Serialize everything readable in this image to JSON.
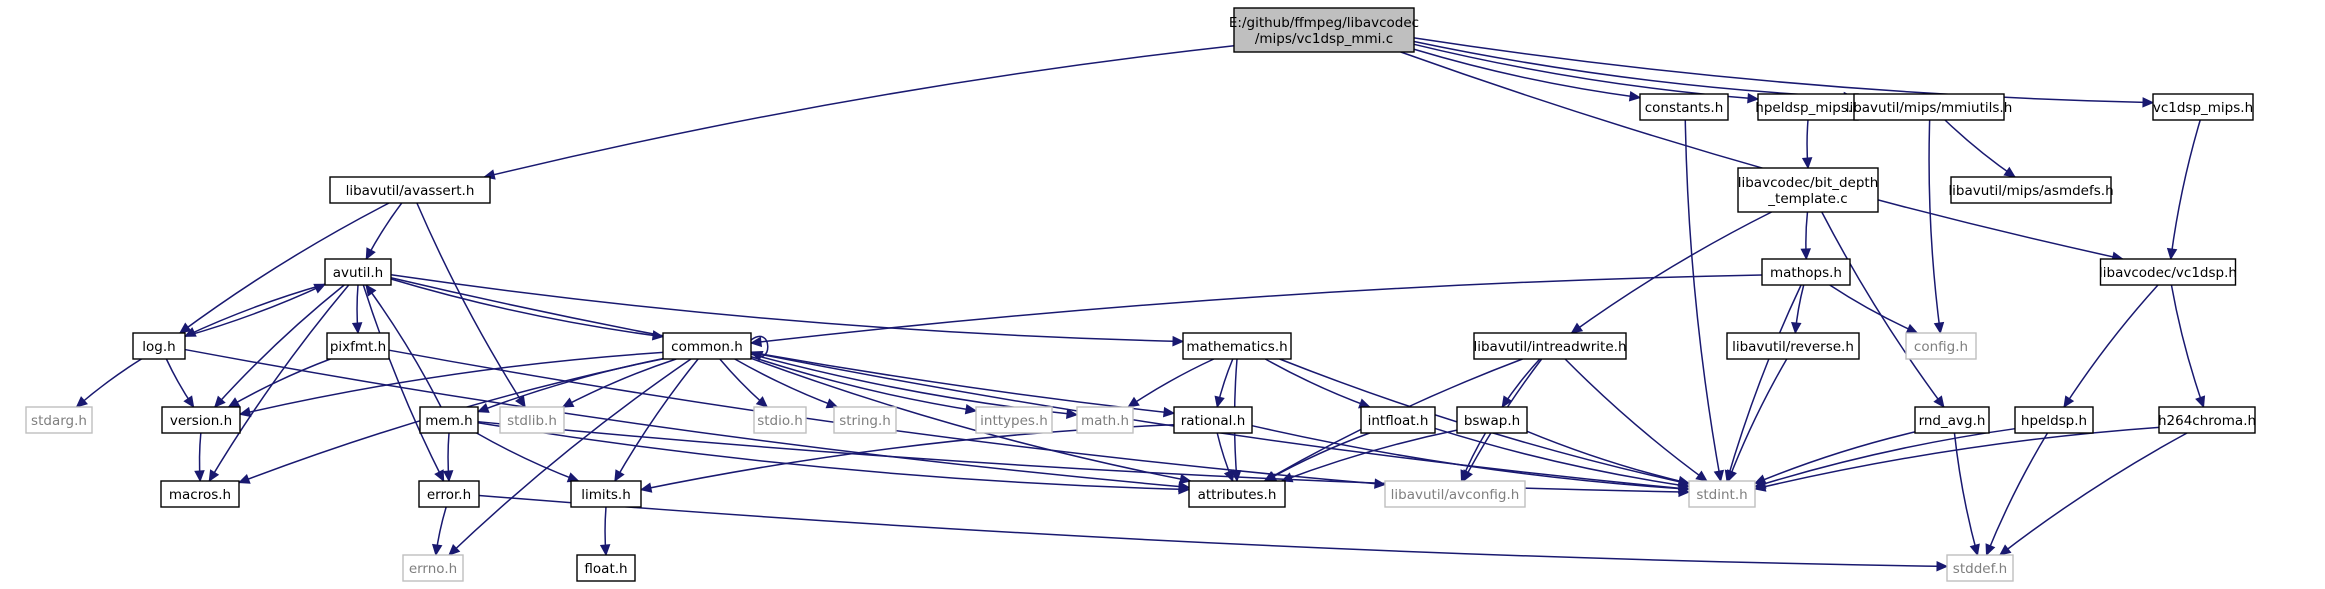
{
  "theme": {
    "node_fill": "#ffffff",
    "root_fill": "#bfbfbf",
    "border": "#000000",
    "external_border": "#bfbfbf",
    "external_text": "#7f7f7f",
    "edge": "#191970"
  },
  "nodes": [
    {
      "id": "root",
      "label": "E:/github/ffmpeg/libavcodec\n/mips/vc1dsp_mmi.c",
      "kind": "root"
    },
    {
      "id": "constants",
      "label": "constants.h",
      "kind": "local"
    },
    {
      "id": "hpeldsp_mips",
      "label": "hpeldsp_mips.h",
      "kind": "local"
    },
    {
      "id": "mmiutils",
      "label": "libavutil/mips/mmiutils.h",
      "kind": "local"
    },
    {
      "id": "vc1dsp_mips",
      "label": "vc1dsp_mips.h",
      "kind": "local"
    },
    {
      "id": "avassert",
      "label": "libavutil/avassert.h",
      "kind": "local"
    },
    {
      "id": "bitdepth",
      "label": "libavcodec/bit_depth\n_template.c",
      "kind": "local"
    },
    {
      "id": "asmdefs",
      "label": "libavutil/mips/asmdefs.h",
      "kind": "local"
    },
    {
      "id": "avutil",
      "label": "avutil.h",
      "kind": "local"
    },
    {
      "id": "mathops",
      "label": "mathops.h",
      "kind": "local"
    },
    {
      "id": "vc1dsp",
      "label": "libavcodec/vc1dsp.h",
      "kind": "local"
    },
    {
      "id": "log",
      "label": "log.h",
      "kind": "local"
    },
    {
      "id": "pixfmt",
      "label": "pixfmt.h",
      "kind": "local"
    },
    {
      "id": "common",
      "label": "common.h",
      "kind": "local"
    },
    {
      "id": "mathematics",
      "label": "mathematics.h",
      "kind": "local"
    },
    {
      "id": "intreadwrite",
      "label": "libavutil/intreadwrite.h",
      "kind": "local"
    },
    {
      "id": "reverse",
      "label": "libavutil/reverse.h",
      "kind": "local"
    },
    {
      "id": "config",
      "label": "config.h",
      "kind": "external"
    },
    {
      "id": "stdarg",
      "label": "stdarg.h",
      "kind": "external"
    },
    {
      "id": "version",
      "label": "version.h",
      "kind": "local"
    },
    {
      "id": "mem",
      "label": "mem.h",
      "kind": "local"
    },
    {
      "id": "stdlib",
      "label": "stdlib.h",
      "kind": "external"
    },
    {
      "id": "stdio",
      "label": "stdio.h",
      "kind": "external"
    },
    {
      "id": "string",
      "label": "string.h",
      "kind": "external"
    },
    {
      "id": "inttypes",
      "label": "inttypes.h",
      "kind": "external"
    },
    {
      "id": "math",
      "label": "math.h",
      "kind": "external"
    },
    {
      "id": "rational",
      "label": "rational.h",
      "kind": "local"
    },
    {
      "id": "intfloat",
      "label": "intfloat.h",
      "kind": "local"
    },
    {
      "id": "bswap",
      "label": "bswap.h",
      "kind": "local"
    },
    {
      "id": "rnd_avg",
      "label": "rnd_avg.h",
      "kind": "local"
    },
    {
      "id": "hpeldsp",
      "label": "hpeldsp.h",
      "kind": "local"
    },
    {
      "id": "h264chroma",
      "label": "h264chroma.h",
      "kind": "local"
    },
    {
      "id": "macros",
      "label": "macros.h",
      "kind": "local"
    },
    {
      "id": "error",
      "label": "error.h",
      "kind": "local"
    },
    {
      "id": "limits",
      "label": "limits.h",
      "kind": "local"
    },
    {
      "id": "attributes",
      "label": "attributes.h",
      "kind": "local"
    },
    {
      "id": "avconfig",
      "label": "libavutil/avconfig.h",
      "kind": "external"
    },
    {
      "id": "stdint",
      "label": "stdint.h",
      "kind": "external"
    },
    {
      "id": "errno",
      "label": "errno.h",
      "kind": "external"
    },
    {
      "id": "float",
      "label": "float.h",
      "kind": "local"
    },
    {
      "id": "stddef",
      "label": "stddef.h",
      "kind": "external"
    }
  ],
  "edges": [
    [
      "root",
      "constants"
    ],
    [
      "root",
      "hpeldsp_mips"
    ],
    [
      "root",
      "mmiutils"
    ],
    [
      "root",
      "vc1dsp_mips"
    ],
    [
      "root",
      "avassert"
    ],
    [
      "root",
      "vc1dsp"
    ],
    [
      "constants",
      "stdint"
    ],
    [
      "hpeldsp_mips",
      "bitdepth"
    ],
    [
      "mmiutils",
      "asmdefs"
    ],
    [
      "mmiutils",
      "config"
    ],
    [
      "vc1dsp_mips",
      "vc1dsp"
    ],
    [
      "avassert",
      "avutil"
    ],
    [
      "avassert",
      "log"
    ],
    [
      "avassert",
      "stdlib"
    ],
    [
      "bitdepth",
      "mathops"
    ],
    [
      "bitdepth",
      "intreadwrite"
    ],
    [
      "bitdepth",
      "rnd_avg"
    ],
    [
      "avutil",
      "log"
    ],
    [
      "avutil",
      "pixfmt"
    ],
    [
      "avutil",
      "common"
    ],
    [
      "avutil",
      "mathematics"
    ],
    [
      "avutil",
      "rational"
    ],
    [
      "avutil",
      "error"
    ],
    [
      "avutil",
      "version"
    ],
    [
      "avutil",
      "macros"
    ],
    [
      "mathops",
      "common"
    ],
    [
      "mathops",
      "reverse"
    ],
    [
      "mathops",
      "config"
    ],
    [
      "mathops",
      "stdint"
    ],
    [
      "vc1dsp",
      "hpeldsp"
    ],
    [
      "vc1dsp",
      "h264chroma"
    ],
    [
      "log",
      "avutil"
    ],
    [
      "log",
      "stdarg"
    ],
    [
      "log",
      "version"
    ],
    [
      "log",
      "attributes"
    ],
    [
      "pixfmt",
      "version"
    ],
    [
      "pixfmt",
      "avconfig"
    ],
    [
      "common",
      "common"
    ],
    [
      "common",
      "version"
    ],
    [
      "common",
      "mem"
    ],
    [
      "common",
      "stdlib"
    ],
    [
      "common",
      "stdio"
    ],
    [
      "common",
      "string"
    ],
    [
      "common",
      "inttypes"
    ],
    [
      "common",
      "math"
    ],
    [
      "common",
      "limits"
    ],
    [
      "common",
      "errno"
    ],
    [
      "common",
      "macros"
    ],
    [
      "common",
      "attributes"
    ],
    [
      "common",
      "stdint"
    ],
    [
      "mathematics",
      "math"
    ],
    [
      "mathematics",
      "rational"
    ],
    [
      "mathematics",
      "intfloat"
    ],
    [
      "mathematics",
      "attributes"
    ],
    [
      "mathematics",
      "stdint"
    ],
    [
      "intreadwrite",
      "bswap"
    ],
    [
      "intreadwrite",
      "attributes"
    ],
    [
      "intreadwrite",
      "avconfig"
    ],
    [
      "intreadwrite",
      "stdint"
    ],
    [
      "reverse",
      "stdint"
    ],
    [
      "mem",
      "avutil"
    ],
    [
      "mem",
      "error"
    ],
    [
      "mem",
      "limits"
    ],
    [
      "mem",
      "attributes"
    ],
    [
      "mem",
      "stdint"
    ],
    [
      "rational",
      "limits"
    ],
    [
      "rational",
      "attributes"
    ],
    [
      "rational",
      "stdint"
    ],
    [
      "intfloat",
      "attributes"
    ],
    [
      "intfloat",
      "stdint"
    ],
    [
      "bswap",
      "attributes"
    ],
    [
      "bswap",
      "avconfig"
    ],
    [
      "bswap",
      "stdint"
    ],
    [
      "rnd_avg",
      "stdint"
    ],
    [
      "rnd_avg",
      "stddef"
    ],
    [
      "hpeldsp",
      "stdint"
    ],
    [
      "hpeldsp",
      "stddef"
    ],
    [
      "h264chroma",
      "stdint"
    ],
    [
      "h264chroma",
      "stddef"
    ],
    [
      "version",
      "macros"
    ],
    [
      "error",
      "errno"
    ],
    [
      "error",
      "stddef"
    ],
    [
      "limits",
      "float"
    ]
  ]
}
